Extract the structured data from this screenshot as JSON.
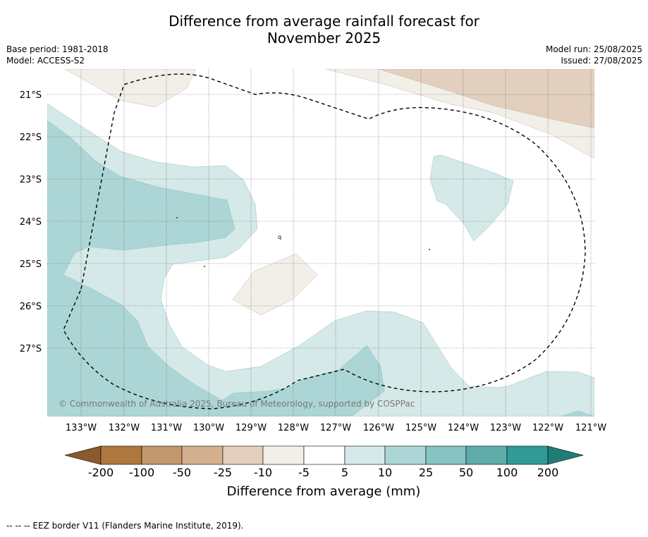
{
  "title_line1": "Difference from average rainfall forecast for",
  "title_line2": "November 2025",
  "base_period": "Base period: 1981-2018",
  "model": "Model: ACCESS-S2",
  "model_run": "Model run: 25/08/2025",
  "issued": "Issued: 27/08/2025",
  "copyright": "© Commonwealth of Australia 2025, Bureau of Meteorology, supported by COSPPac",
  "footer": "-- -- -- EEZ border V11 (Flanders Marine Institute, 2019).",
  "map": {
    "lon_ticks": [
      "133°W",
      "132°W",
      "131°W",
      "130°W",
      "129°W",
      "128°W",
      "127°W",
      "126°W",
      "125°W",
      "124°W",
      "123°W",
      "122°W",
      "121°W"
    ],
    "lat_ticks": [
      "21°S",
      "22°S",
      "23°S",
      "24°S",
      "25°S",
      "26°S",
      "27°S"
    ],
    "stray_label": "q"
  },
  "colorbar": {
    "label": "Difference from average (mm)",
    "tick_labels": [
      "-200",
      "-100",
      "-50",
      "-25",
      "-10",
      "-5",
      "5",
      "10",
      "25",
      "50",
      "100",
      "200"
    ],
    "colors": {
      "below_min": "#8a5a2a",
      "m200_m100": "#ae773e",
      "m100_m50": "#c2976b",
      "m50_m25": "#d4b08f",
      "m25_m10": "#e3cfbd",
      "m10_m5": "#f2efe9",
      "m5_5": "#ffffff",
      "5_10": "#d5e9e8",
      "10_25": "#acd6d6",
      "25_50": "#86c3c1",
      "50_100": "#5eadaa",
      "100_200": "#329a96",
      "above_max": "#1f7d78"
    }
  }
}
